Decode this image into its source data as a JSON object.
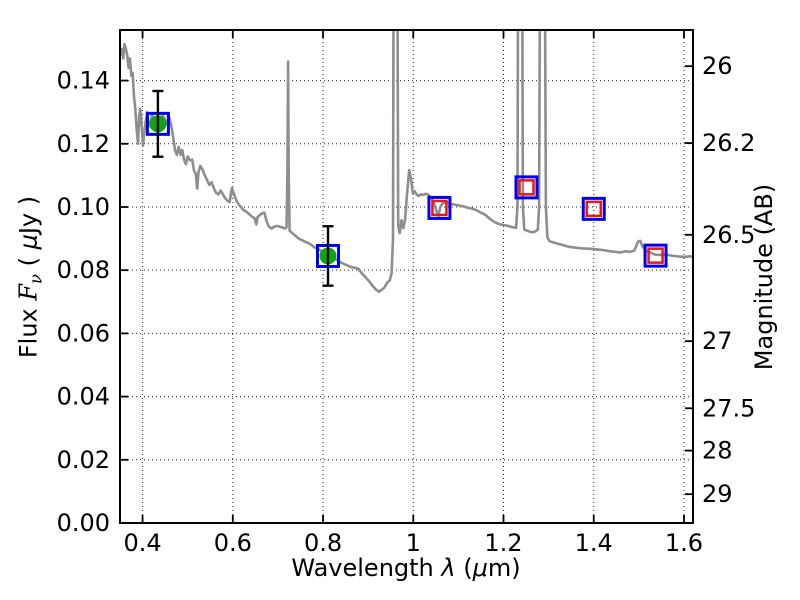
{
  "chart_data": {
    "type": "line",
    "description": "Galaxy SED: gray model spectrum with photometric data points (flux vs wavelength), dual y-axis flux / AB magnitude",
    "title": "",
    "xlabel": "Wavelength λ (μm)",
    "ylabel_left": "Flux Fν ( μJy )",
    "ylabel_right": "Magnitude (AB)",
    "xlabel_segments": [
      {
        "t": "Wavelength  ",
        "style": "plain"
      },
      {
        "t": "λ",
        "style": "i"
      },
      {
        "t": " (",
        "style": "plain"
      },
      {
        "t": "μ",
        "style": "i"
      },
      {
        "t": "m)",
        "style": "plain"
      }
    ],
    "ylabel_left_segments": [
      {
        "t": "Flux  ",
        "style": "plain"
      },
      {
        "t": "F",
        "style": "serif-i"
      },
      {
        "t": "ν",
        "style": "sub-i"
      },
      {
        "t": " ( ",
        "style": "plain"
      },
      {
        "t": "μ",
        "style": "i"
      },
      {
        "t": "Jy )",
        "style": "plain"
      }
    ],
    "ylabel_right_text": "Magnitude (AB)",
    "xlim": [
      0.35,
      1.62
    ],
    "ylim": [
      0,
      0.156
    ],
    "grid": "dotted, at major ticks of bottom and left axes",
    "x_ticks": [
      {
        "v": 0.4,
        "label": "0.4"
      },
      {
        "v": 0.6,
        "label": "0.6"
      },
      {
        "v": 0.8,
        "label": "0.8"
      },
      {
        "v": 1.0,
        "label": "1"
      },
      {
        "v": 1.2,
        "label": "1.2"
      },
      {
        "v": 1.4,
        "label": "1.4"
      },
      {
        "v": 1.6,
        "label": "1.6"
      }
    ],
    "y_ticks_flux": [
      {
        "v": 0.0,
        "label": "0.00"
      },
      {
        "v": 0.02,
        "label": "0.02"
      },
      {
        "v": 0.04,
        "label": "0.04"
      },
      {
        "v": 0.06,
        "label": "0.06"
      },
      {
        "v": 0.08,
        "label": "0.08"
      },
      {
        "v": 0.1,
        "label": "0.10"
      },
      {
        "v": 0.12,
        "label": "0.12"
      },
      {
        "v": 0.14,
        "label": "0.14"
      }
    ],
    "y_ticks_mag": [
      {
        "mag": 26,
        "label": "26",
        "flux_equiv": 0.14454
      },
      {
        "mag": 26.2,
        "label": "26.2",
        "flux_equiv": 0.12023
      },
      {
        "mag": 26.5,
        "label": "26.5",
        "flux_equiv": 0.0912
      },
      {
        "mag": 27,
        "label": "27",
        "flux_equiv": 0.05754
      },
      {
        "mag": 27.5,
        "label": "27.5",
        "flux_equiv": 0.03631
      },
      {
        "mag": 28,
        "label": "28",
        "flux_equiv": 0.02291
      },
      {
        "mag": 29,
        "label": "29",
        "flux_equiv": 0.00912
      }
    ],
    "colors": {
      "spectrum": "#8e8e8e",
      "box_square": "#0000ee",
      "inner_square": "#e81616",
      "measured_circle": "#12a312",
      "errorbar": "#000000",
      "axes": "#000000"
    },
    "spectrum": {
      "name": "model-spectrum",
      "emission_lines_um": [
        0.723,
        0.96,
        1.236,
        1.286
      ],
      "points_um_ujy": [
        [
          0.35,
          0.148
        ],
        [
          0.354,
          0.15
        ],
        [
          0.357,
          0.147
        ],
        [
          0.36,
          0.1515
        ],
        [
          0.363,
          0.15
        ],
        [
          0.366,
          0.148
        ],
        [
          0.369,
          0.144
        ],
        [
          0.372,
          0.147
        ],
        [
          0.375,
          0.1415
        ],
        [
          0.378,
          0.1425
        ],
        [
          0.381,
          0.135
        ],
        [
          0.384,
          0.131
        ],
        [
          0.387,
          0.1245
        ],
        [
          0.39,
          0.12
        ],
        [
          0.3925,
          0.129
        ],
        [
          0.395,
          0.131
        ],
        [
          0.398,
          0.1255
        ],
        [
          0.401,
          0.1195
        ],
        [
          0.404,
          0.124
        ],
        [
          0.407,
          0.127
        ],
        [
          0.41,
          0.13
        ],
        [
          0.413,
          0.127
        ],
        [
          0.417,
          0.1255
        ],
        [
          0.421,
          0.1295
        ],
        [
          0.425,
          0.128
        ],
        [
          0.429,
          0.126
        ],
        [
          0.434,
          0.1262
        ],
        [
          0.439,
          0.1275
        ],
        [
          0.444,
          0.129
        ],
        [
          0.449,
          0.128
        ],
        [
          0.454,
          0.126
        ],
        [
          0.459,
          0.1285
        ],
        [
          0.464,
          0.1255
        ],
        [
          0.468,
          0.122
        ],
        [
          0.472,
          0.118
        ],
        [
          0.476,
          0.1165
        ],
        [
          0.48,
          0.119
        ],
        [
          0.484,
          0.1165
        ],
        [
          0.488,
          0.118
        ],
        [
          0.492,
          0.115
        ],
        [
          0.496,
          0.1135
        ],
        [
          0.5,
          0.116
        ],
        [
          0.505,
          0.1148
        ],
        [
          0.51,
          0.115
        ],
        [
          0.514,
          0.1115
        ],
        [
          0.518,
          0.1105
        ],
        [
          0.521,
          0.1058
        ],
        [
          0.524,
          0.111
        ],
        [
          0.528,
          0.113
        ],
        [
          0.533,
          0.1118
        ],
        [
          0.538,
          0.11
        ],
        [
          0.543,
          0.1085
        ],
        [
          0.548,
          0.107
        ],
        [
          0.553,
          0.1078
        ],
        [
          0.558,
          0.106
        ],
        [
          0.563,
          0.1045
        ],
        [
          0.568,
          0.104
        ],
        [
          0.573,
          0.1052
        ],
        [
          0.578,
          0.104
        ],
        [
          0.583,
          0.1028
        ],
        [
          0.588,
          0.102
        ],
        [
          0.593,
          0.1015
        ],
        [
          0.598,
          0.106
        ],
        [
          0.603,
          0.104
        ],
        [
          0.608,
          0.102
        ],
        [
          0.613,
          0.1008
        ],
        [
          0.618,
          0.1
        ],
        [
          0.624,
          0.099
        ],
        [
          0.63,
          0.0985
        ],
        [
          0.636,
          0.0978
        ],
        [
          0.642,
          0.097
        ],
        [
          0.648,
          0.0965
        ],
        [
          0.652,
          0.0945
        ],
        [
          0.655,
          0.0968
        ],
        [
          0.66,
          0.0975
        ],
        [
          0.665,
          0.098
        ],
        [
          0.67,
          0.0982
        ],
        [
          0.675,
          0.0955
        ],
        [
          0.68,
          0.0938
        ],
        [
          0.686,
          0.0932
        ],
        [
          0.692,
          0.0938
        ],
        [
          0.698,
          0.094
        ],
        [
          0.704,
          0.0938
        ],
        [
          0.71,
          0.0935
        ],
        [
          0.715,
          0.0932
        ],
        [
          0.719,
          0.0935
        ],
        [
          0.721,
          0.11
        ],
        [
          0.7225,
          0.146
        ],
        [
          0.724,
          0.11
        ],
        [
          0.726,
          0.0925
        ],
        [
          0.73,
          0.092
        ],
        [
          0.736,
          0.0912
        ],
        [
          0.742,
          0.0905
        ],
        [
          0.748,
          0.0898
        ],
        [
          0.754,
          0.0895
        ],
        [
          0.76,
          0.089
        ],
        [
          0.767,
          0.0886
        ],
        [
          0.774,
          0.088
        ],
        [
          0.781,
          0.0872
        ],
        [
          0.788,
          0.0868
        ],
        [
          0.795,
          0.0862
        ],
        [
          0.802,
          0.0856
        ],
        [
          0.809,
          0.085
        ],
        [
          0.816,
          0.0843
        ],
        [
          0.823,
          0.0838
        ],
        [
          0.83,
          0.0833
        ],
        [
          0.838,
          0.0826
        ],
        [
          0.846,
          0.082
        ],
        [
          0.854,
          0.0815
        ],
        [
          0.862,
          0.081
        ],
        [
          0.87,
          0.0808
        ],
        [
          0.878,
          0.0805
        ],
        [
          0.886,
          0.079
        ],
        [
          0.894,
          0.0778
        ],
        [
          0.902,
          0.0765
        ],
        [
          0.91,
          0.075
        ],
        [
          0.918,
          0.0738
        ],
        [
          0.924,
          0.0732
        ],
        [
          0.93,
          0.0738
        ],
        [
          0.936,
          0.0745
        ],
        [
          0.942,
          0.076
        ],
        [
          0.948,
          0.0768
        ],
        [
          0.952,
          0.079
        ],
        [
          0.955,
          0.09
        ],
        [
          0.957,
          0.22
        ],
        [
          0.964,
          0.22
        ],
        [
          0.9665,
          0.094
        ],
        [
          0.97,
          0.0917
        ],
        [
          0.974,
          0.0958
        ],
        [
          0.978,
          0.0933
        ],
        [
          0.982,
          0.096
        ],
        [
          0.986,
          0.104
        ],
        [
          0.991,
          0.1117
        ],
        [
          0.995,
          0.109
        ],
        [
          0.999,
          0.1044
        ],
        [
          1.003,
          0.105
        ],
        [
          1.007,
          0.104
        ],
        [
          1.012,
          0.1035
        ],
        [
          1.017,
          0.104
        ],
        [
          1.022,
          0.1038
        ],
        [
          1.028,
          0.1042
        ],
        [
          1.034,
          0.1038
        ],
        [
          1.04,
          0.103
        ],
        [
          1.046,
          0.1012
        ],
        [
          1.052,
          0.0985
        ],
        [
          1.056,
          0.0972
        ],
        [
          1.06,
          0.1
        ],
        [
          1.065,
          0.1012
        ],
        [
          1.072,
          0.1015
        ],
        [
          1.08,
          0.101
        ],
        [
          1.09,
          0.1008
        ],
        [
          1.1,
          0.1005
        ],
        [
          1.11,
          0.1002
        ],
        [
          1.12,
          0.0998
        ],
        [
          1.13,
          0.0995
        ],
        [
          1.14,
          0.099
        ],
        [
          1.15,
          0.0982
        ],
        [
          1.16,
          0.0975
        ],
        [
          1.17,
          0.0962
        ],
        [
          1.18,
          0.0952
        ],
        [
          1.19,
          0.0946
        ],
        [
          1.2,
          0.0943
        ],
        [
          1.21,
          0.094
        ],
        [
          1.22,
          0.0936
        ],
        [
          1.228,
          0.0934
        ],
        [
          1.231,
          0.1
        ],
        [
          1.233,
          0.22
        ],
        [
          1.2405,
          0.22
        ],
        [
          1.243,
          0.1
        ],
        [
          1.246,
          0.0928
        ],
        [
          1.252,
          0.0925
        ],
        [
          1.258,
          0.0922
        ],
        [
          1.264,
          0.092
        ],
        [
          1.27,
          0.0922
        ],
        [
          1.276,
          0.0928
        ],
        [
          1.279,
          0.1
        ],
        [
          1.282,
          0.22
        ],
        [
          1.2905,
          0.22
        ],
        [
          1.294,
          0.1
        ],
        [
          1.297,
          0.0905
        ],
        [
          1.302,
          0.0892
        ],
        [
          1.31,
          0.0888
        ],
        [
          1.32,
          0.0884
        ],
        [
          1.33,
          0.088
        ],
        [
          1.345,
          0.0874
        ],
        [
          1.36,
          0.0871
        ],
        [
          1.375,
          0.0869
        ],
        [
          1.39,
          0.0868
        ],
        [
          1.405,
          0.0866
        ],
        [
          1.42,
          0.0864
        ],
        [
          1.435,
          0.086
        ],
        [
          1.45,
          0.0858
        ],
        [
          1.46,
          0.0856
        ],
        [
          1.47,
          0.086
        ],
        [
          1.48,
          0.0858
        ],
        [
          1.49,
          0.0862
        ],
        [
          1.498,
          0.089
        ],
        [
          1.503,
          0.0893
        ],
        [
          1.508,
          0.0875
        ],
        [
          1.515,
          0.0862
        ],
        [
          1.525,
          0.0856
        ],
        [
          1.535,
          0.085
        ],
        [
          1.545,
          0.0848
        ],
        [
          1.555,
          0.085
        ],
        [
          1.565,
          0.0848
        ],
        [
          1.578,
          0.0845
        ],
        [
          1.59,
          0.0843
        ],
        [
          1.602,
          0.0842
        ],
        [
          1.612,
          0.0844
        ],
        [
          1.62,
          0.0843
        ]
      ]
    },
    "photometry": {
      "measured": {
        "marker": "green filled circle inside blue open square with black error bars",
        "points": [
          {
            "wavelength_um": 0.434,
            "flux_ujy": 0.1263,
            "err_ujy": 0.0104
          },
          {
            "wavelength_um": 0.811,
            "flux_ujy": 0.0845,
            "err_ujy": 0.0094
          }
        ]
      },
      "model_bands": {
        "marker": "red open square inside blue open square",
        "points": [
          {
            "wavelength_um": 1.058,
            "flux_ujy": 0.0997
          },
          {
            "wavelength_um": 1.251,
            "flux_ujy": 0.1062
          },
          {
            "wavelength_um": 1.4,
            "flux_ujy": 0.0994
          },
          {
            "wavelength_um": 1.537,
            "flux_ujy": 0.0846
          }
        ]
      }
    }
  }
}
